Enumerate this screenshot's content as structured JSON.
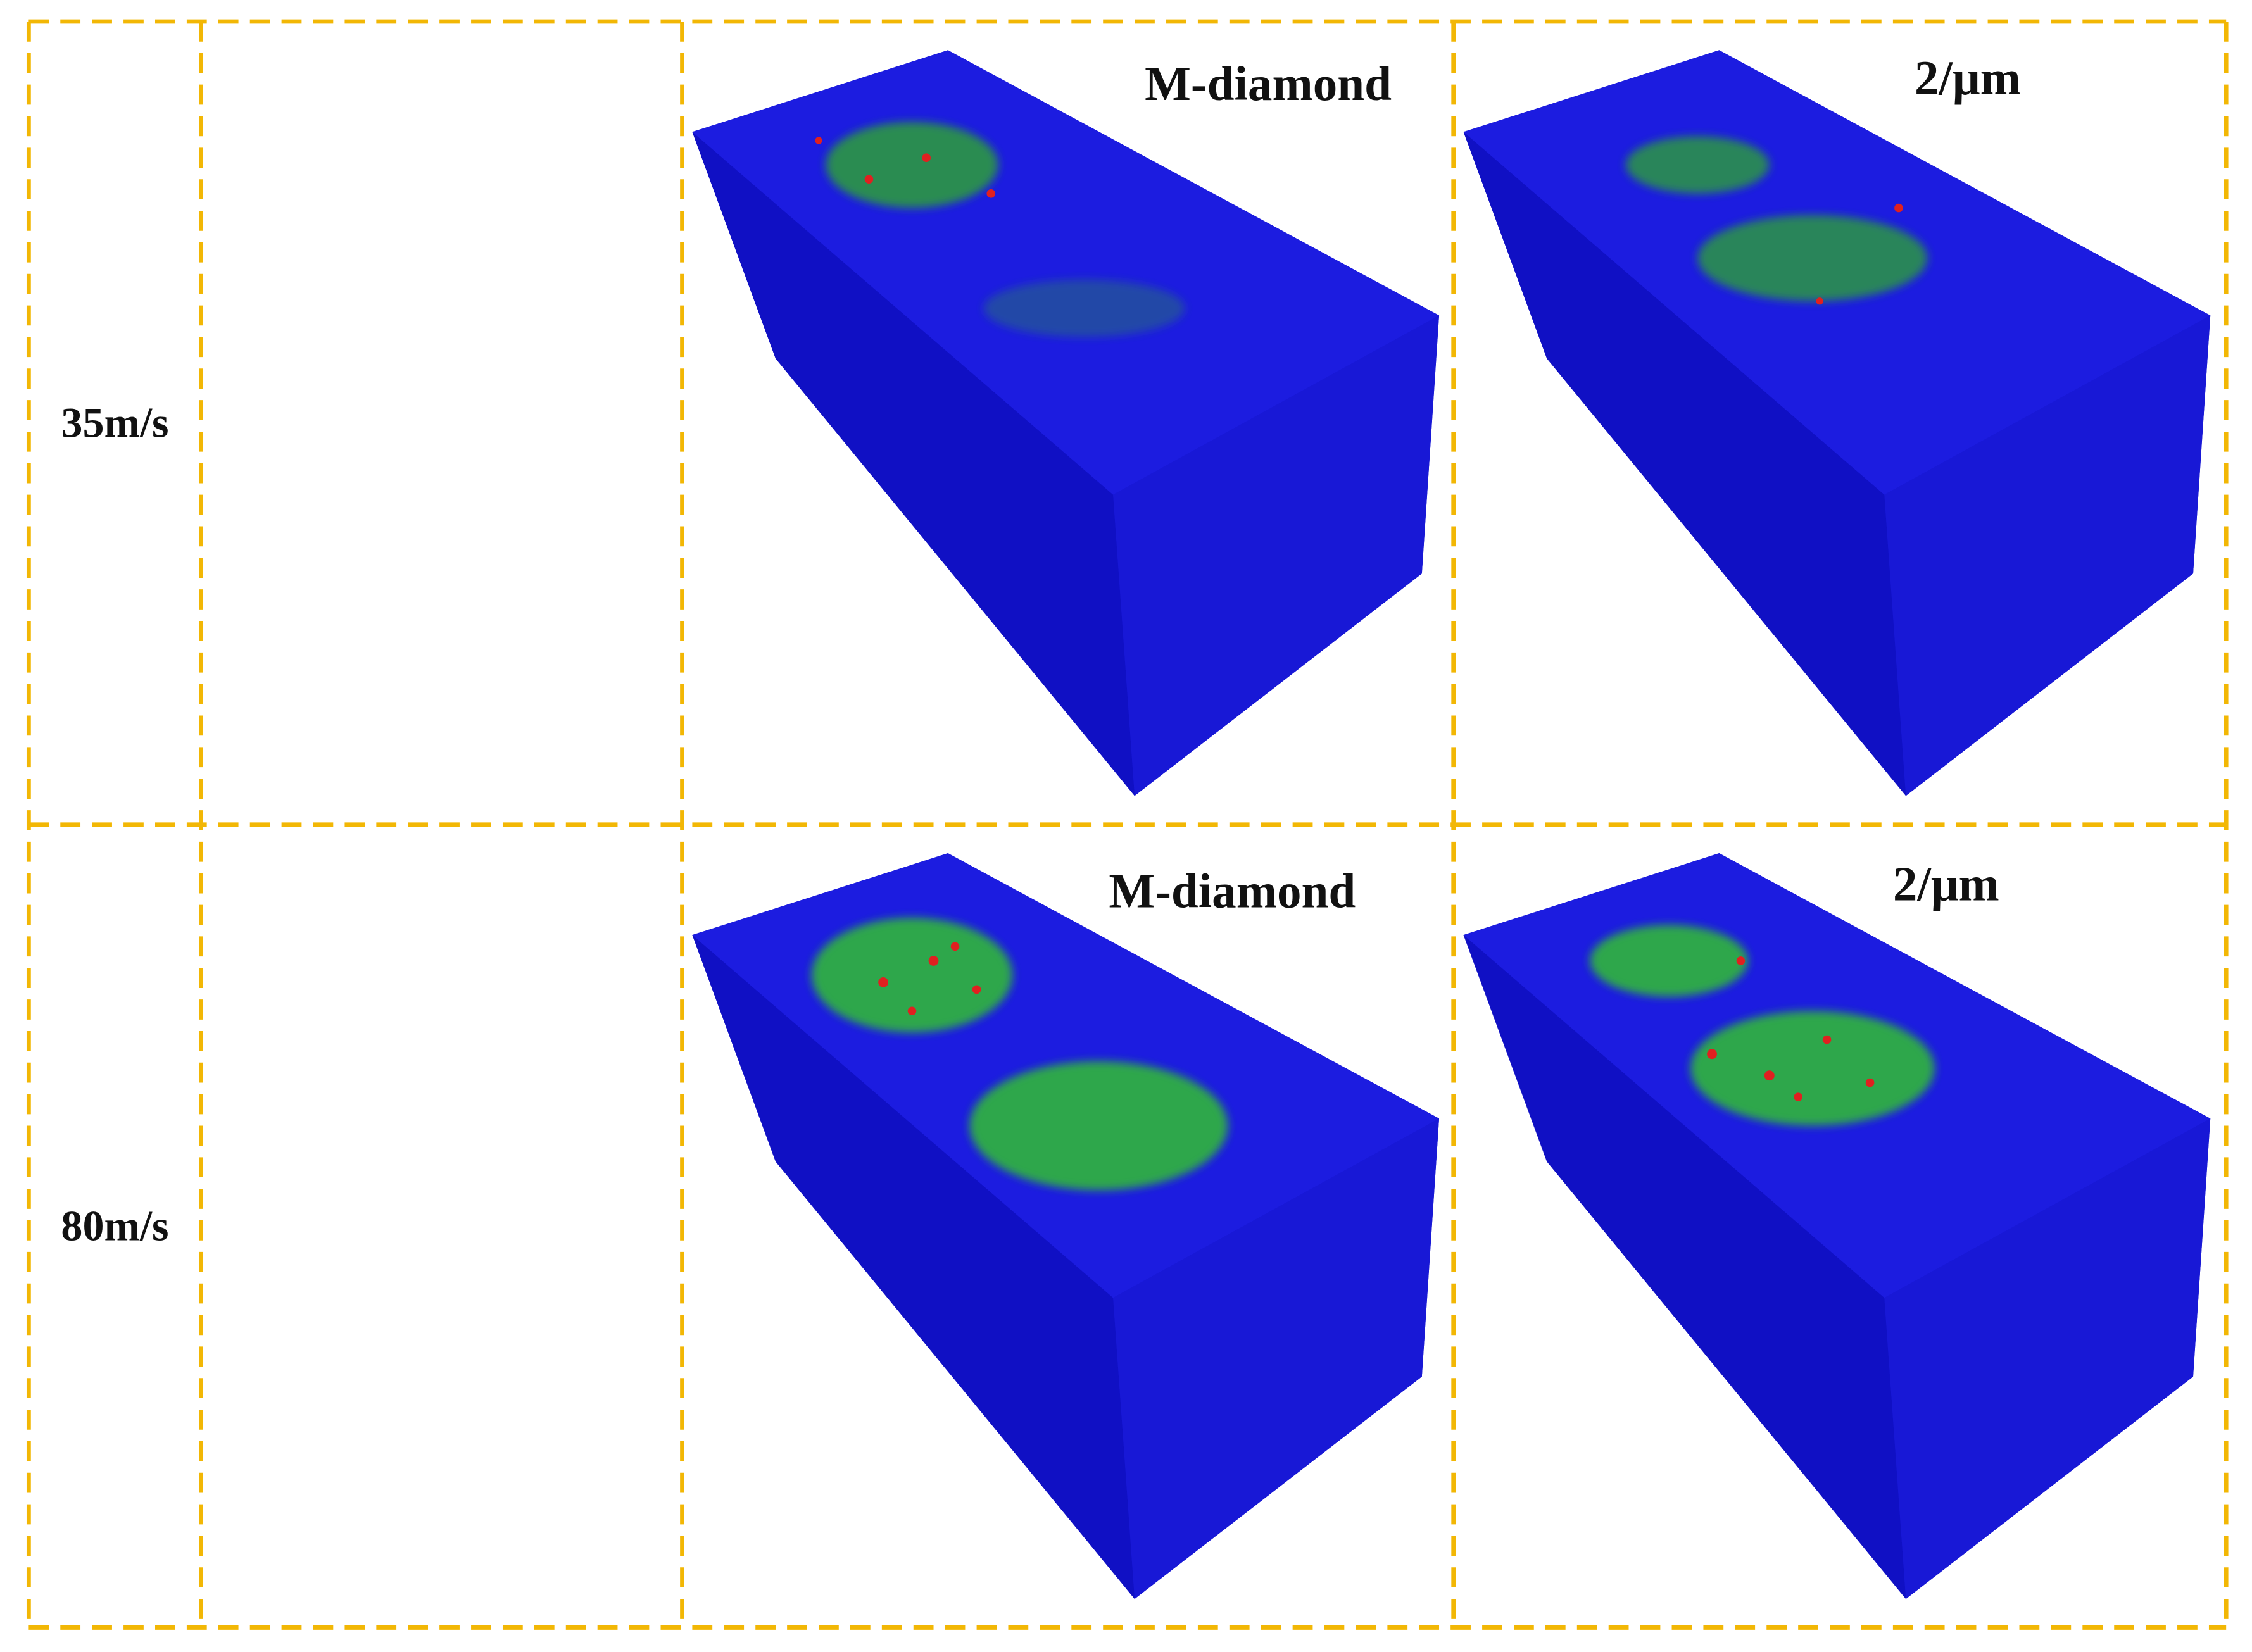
{
  "rows": [
    {
      "label": "35m/s",
      "panels": [
        {
          "label": "M-diamond"
        },
        {
          "label": "2/μm"
        }
      ]
    },
    {
      "label": "80m/s",
      "panels": [
        {
          "label": "M-diamond"
        },
        {
          "label": "2/μm"
        }
      ]
    }
  ]
}
